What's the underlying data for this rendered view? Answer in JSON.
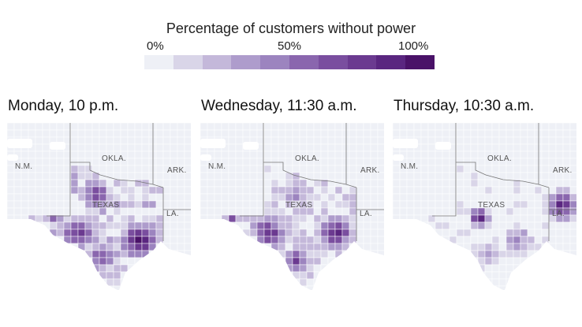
{
  "legend": {
    "title": "Percentage of customers without power",
    "tick_0": "0%",
    "tick_50": "50%",
    "tick_100": "100%",
    "colors": [
      "#eef0f6",
      "#d9d5e8",
      "#c4b8da",
      "#ae9ccc",
      "#9c84bf",
      "#8a66ae",
      "#7a4e9f",
      "#6b3a90",
      "#5a2680",
      "#4a1268"
    ]
  },
  "state_labels": {
    "nm": "N.M.",
    "okla": "OKLA.",
    "ark": "ARK.",
    "texas": "TEXAS",
    "la": "LA."
  },
  "panels": [
    {
      "title": "Monday, 10 p.m."
    },
    {
      "title": "Wednesday, 11:30 a.m."
    },
    {
      "title": "Thursday, 10:30 a.m."
    }
  ]
}
